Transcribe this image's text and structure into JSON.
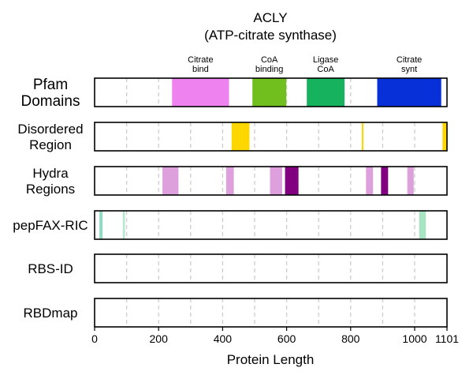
{
  "chart_data": {
    "type": "bar",
    "title": "ACLY",
    "subtitle": "(ATP-citrate synthase)",
    "xlabel": "Protein Length",
    "xlim": [
      0,
      1101
    ],
    "x_ticks": [
      0,
      200,
      400,
      600,
      800,
      1000,
      1101
    ],
    "gridlines_x": [
      100,
      200,
      300,
      400,
      500,
      600,
      700,
      800,
      900,
      1000
    ],
    "grid": "vertical dashed",
    "tracks": [
      {
        "label_lines": [
          "Pfam",
          "Domains"
        ],
        "segments": [
          {
            "start": 242,
            "end": 420,
            "color": "#EE82EE",
            "label_lines": [
              "Citrate",
              "bind"
            ]
          },
          {
            "start": 493,
            "end": 599,
            "color": "#70BF1F",
            "label_lines": [
              "CoA",
              "binding"
            ]
          },
          {
            "start": 663,
            "end": 781,
            "color": "#17B25D",
            "label_lines": [
              "Ligase",
              "CoA"
            ]
          },
          {
            "start": 883,
            "end": 1083,
            "color": "#0730D9",
            "label_lines": [
              "Citrate",
              "synt"
            ]
          }
        ]
      },
      {
        "label_lines": [
          "Disordered",
          "Region"
        ],
        "segments": [
          {
            "start": 428,
            "end": 484,
            "color": "#FFD700"
          },
          {
            "start": 835,
            "end": 840,
            "color": "#FFD700"
          },
          {
            "start": 1087,
            "end": 1101,
            "color": "#FFD700"
          }
        ]
      },
      {
        "label_lines": [
          "Hydra",
          "Regions"
        ],
        "segments": [
          {
            "start": 212,
            "end": 262,
            "color": "#DDA0DD"
          },
          {
            "start": 411,
            "end": 435,
            "color": "#DDA0DD"
          },
          {
            "start": 548,
            "end": 586,
            "color": "#DDA0DD"
          },
          {
            "start": 595,
            "end": 637,
            "color": "#800080"
          },
          {
            "start": 848,
            "end": 870,
            "color": "#DDA0DD"
          },
          {
            "start": 895,
            "end": 917,
            "color": "#800080"
          },
          {
            "start": 977,
            "end": 997,
            "color": "#DDA0DD"
          }
        ]
      },
      {
        "label_lines": [
          "pepFAX-RIC"
        ],
        "segments": [
          {
            "start": 15,
            "end": 25,
            "color": "#8FDCC0"
          },
          {
            "start": 88,
            "end": 95,
            "color": "#B8E8D0"
          },
          {
            "start": 1014,
            "end": 1035,
            "color": "#A8E3C4"
          }
        ]
      },
      {
        "label_lines": [
          "RBS-ID"
        ],
        "segments": []
      },
      {
        "label_lines": [
          "RBDmap"
        ],
        "segments": []
      }
    ]
  }
}
